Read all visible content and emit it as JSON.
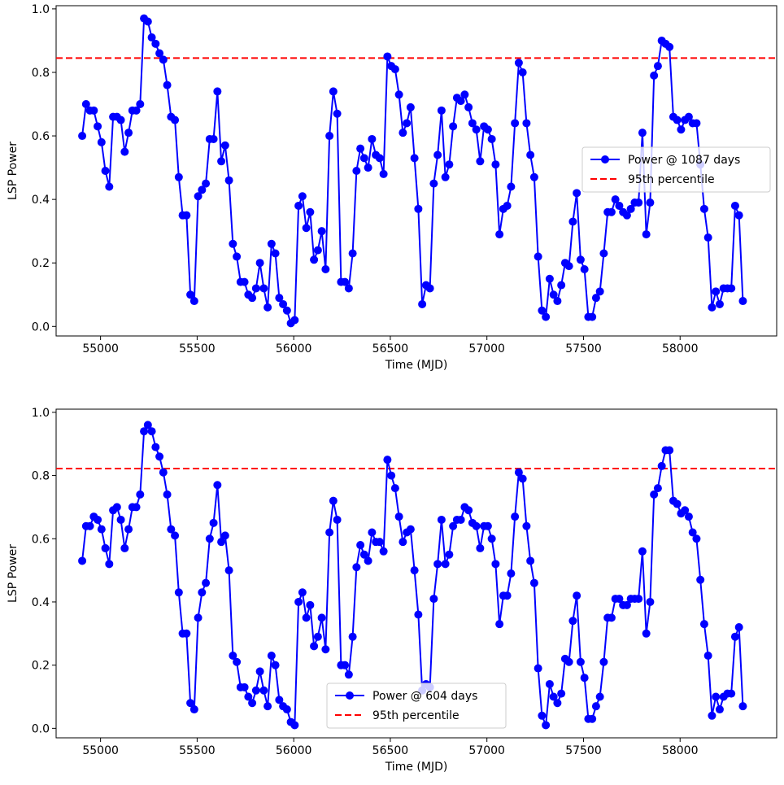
{
  "chart_data": [
    {
      "type": "line",
      "xlabel": "Time (MJD)",
      "ylabel": "LSP Power",
      "xlim": [
        54770,
        58500
      ],
      "ylim": [
        -0.03,
        1.01
      ],
      "xticks": [
        55000,
        55500,
        56000,
        56500,
        57000,
        57500,
        58000
      ],
      "yticks": [
        0.0,
        0.2,
        0.4,
        0.6,
        0.8,
        1.0
      ],
      "grid": false,
      "legend_position": "center-right",
      "threshold": {
        "name": "95th percentile",
        "value": 0.845,
        "color": "#ff0000",
        "style": "dashed"
      },
      "series": [
        {
          "name": "Power @ 1087 days",
          "color": "#0000ff",
          "x": [
            54905,
            54925,
            54945,
            54965,
            54985,
            55005,
            55025,
            55045,
            55065,
            55085,
            55105,
            55125,
            55145,
            55165,
            55185,
            55205,
            55225,
            55245,
            55265,
            55285,
            55305,
            55325,
            55345,
            55365,
            55385,
            55405,
            55425,
            55445,
            55465,
            55485,
            55505,
            55525,
            55545,
            55565,
            55585,
            55605,
            55625,
            55645,
            55665,
            55685,
            55705,
            55725,
            55745,
            55765,
            55785,
            55805,
            55825,
            55845,
            55865,
            55885,
            55905,
            55925,
            55945,
            55965,
            55985,
            56005,
            56025,
            56045,
            56065,
            56085,
            56105,
            56125,
            56145,
            56165,
            56185,
            56205,
            56225,
            56245,
            56265,
            56285,
            56305,
            56325,
            56345,
            56365,
            56385,
            56405,
            56425,
            56445,
            56465,
            56485,
            56505,
            56525,
            56545,
            56565,
            56585,
            56605,
            56625,
            56645,
            56665,
            56685,
            56705,
            56725,
            56745,
            56765,
            56785,
            56805,
            56825,
            56845,
            56865,
            56885,
            56905,
            56925,
            56945,
            56965,
            56985,
            57005,
            57025,
            57045,
            57065,
            57085,
            57105,
            57125,
            57145,
            57165,
            57185,
            57205,
            57225,
            57245,
            57265,
            57285,
            57305,
            57325,
            57345,
            57365,
            57385,
            57405,
            57425,
            57445,
            57465,
            57485,
            57505,
            57525,
            57545,
            57565,
            57585,
            57605,
            57625,
            57645,
            57665,
            57685,
            57705,
            57725,
            57745,
            57765,
            57785,
            57805,
            57825,
            57845,
            57865,
            57885,
            57905,
            57925,
            57945,
            57965,
            57985,
            58005,
            58025,
            58045,
            58065,
            58085,
            58105,
            58125,
            58145,
            58165,
            58185,
            58205,
            58225,
            58245,
            58265,
            58285,
            58305,
            58325
          ],
          "y": [
            0.6,
            0.7,
            0.68,
            0.68,
            0.63,
            0.58,
            0.49,
            0.44,
            0.66,
            0.66,
            0.65,
            0.55,
            0.61,
            0.68,
            0.68,
            0.7,
            0.97,
            0.96,
            0.91,
            0.89,
            0.86,
            0.84,
            0.76,
            0.66,
            0.65,
            0.47,
            0.35,
            0.35,
            0.1,
            0.08,
            0.41,
            0.43,
            0.45,
            0.59,
            0.59,
            0.74,
            0.52,
            0.57,
            0.46,
            0.26,
            0.22,
            0.14,
            0.14,
            0.1,
            0.09,
            0.12,
            0.2,
            0.12,
            0.06,
            0.26,
            0.23,
            0.09,
            0.07,
            0.05,
            0.01,
            0.02,
            0.38,
            0.41,
            0.31,
            0.36,
            0.21,
            0.24,
            0.3,
            0.18,
            0.6,
            0.74,
            0.67,
            0.14,
            0.14,
            0.12,
            0.23,
            0.49,
            0.56,
            0.53,
            0.5,
            0.59,
            0.54,
            0.53,
            0.48,
            0.85,
            0.82,
            0.81,
            0.73,
            0.61,
            0.64,
            0.69,
            0.53,
            0.37,
            0.07,
            0.13,
            0.12,
            0.45,
            0.54,
            0.68,
            0.47,
            0.51,
            0.63,
            0.72,
            0.71,
            0.73,
            0.69,
            0.64,
            0.62,
            0.52,
            0.63,
            0.62,
            0.59,
            0.51,
            0.29,
            0.37,
            0.38,
            0.44,
            0.64,
            0.83,
            0.8,
            0.64,
            0.54,
            0.47,
            0.22,
            0.05,
            0.03,
            0.15,
            0.1,
            0.08,
            0.13,
            0.2,
            0.19,
            0.33,
            0.42,
            0.21,
            0.18,
            0.03,
            0.03,
            0.09,
            0.11,
            0.23,
            0.36,
            0.36,
            0.4,
            0.38,
            0.36,
            0.35,
            0.37,
            0.39,
            0.39,
            0.61,
            0.29,
            0.39,
            0.79,
            0.82,
            0.9,
            0.89,
            0.88,
            0.66,
            0.65,
            0.62,
            0.65,
            0.66,
            0.64,
            0.64,
            0.51,
            0.37,
            0.28,
            0.06,
            0.11,
            0.07,
            0.12,
            0.12,
            0.12,
            0.38,
            0.35,
            0.08
          ]
        }
      ]
    },
    {
      "type": "line",
      "xlabel": "Time (MJD)",
      "ylabel": "LSP Power",
      "xlim": [
        54770,
        58500
      ],
      "ylim": [
        -0.03,
        1.01
      ],
      "xticks": [
        55000,
        55500,
        56000,
        56500,
        57000,
        57500,
        58000
      ],
      "yticks": [
        0.0,
        0.2,
        0.4,
        0.6,
        0.8,
        1.0
      ],
      "grid": false,
      "legend_position": "bottom-center",
      "threshold": {
        "name": "95th percentile",
        "value": 0.822,
        "color": "#ff0000",
        "style": "dashed"
      },
      "series": [
        {
          "name": "Power @ 604 days",
          "color": "#0000ff",
          "x": [
            54905,
            54925,
            54945,
            54965,
            54985,
            55005,
            55025,
            55045,
            55065,
            55085,
            55105,
            55125,
            55145,
            55165,
            55185,
            55205,
            55225,
            55245,
            55265,
            55285,
            55305,
            55325,
            55345,
            55365,
            55385,
            55405,
            55425,
            55445,
            55465,
            55485,
            55505,
            55525,
            55545,
            55565,
            55585,
            55605,
            55625,
            55645,
            55665,
            55685,
            55705,
            55725,
            55745,
            55765,
            55785,
            55805,
            55825,
            55845,
            55865,
            55885,
            55905,
            55925,
            55945,
            55965,
            55985,
            56005,
            56025,
            56045,
            56065,
            56085,
            56105,
            56125,
            56145,
            56165,
            56185,
            56205,
            56225,
            56245,
            56265,
            56285,
            56305,
            56325,
            56345,
            56365,
            56385,
            56405,
            56425,
            56445,
            56465,
            56485,
            56505,
            56525,
            56545,
            56565,
            56585,
            56605,
            56625,
            56645,
            56665,
            56685,
            56705,
            56725,
            56745,
            56765,
            56785,
            56805,
            56825,
            56845,
            56865,
            56885,
            56905,
            56925,
            56945,
            56965,
            56985,
            57005,
            57025,
            57045,
            57065,
            57085,
            57105,
            57125,
            57145,
            57165,
            57185,
            57205,
            57225,
            57245,
            57265,
            57285,
            57305,
            57325,
            57345,
            57365,
            57385,
            57405,
            57425,
            57445,
            57465,
            57485,
            57505,
            57525,
            57545,
            57565,
            57585,
            57605,
            57625,
            57645,
            57665,
            57685,
            57705,
            57725,
            57745,
            57765,
            57785,
            57805,
            57825,
            57845,
            57865,
            57885,
            57905,
            57925,
            57945,
            57965,
            57985,
            58005,
            58025,
            58045,
            58065,
            58085,
            58105,
            58125,
            58145,
            58165,
            58185,
            58205,
            58225,
            58245,
            58265,
            58285,
            58305,
            58325
          ],
          "y": [
            0.53,
            0.64,
            0.64,
            0.67,
            0.66,
            0.63,
            0.57,
            0.52,
            0.69,
            0.7,
            0.66,
            0.57,
            0.63,
            0.7,
            0.7,
            0.74,
            0.94,
            0.96,
            0.94,
            0.89,
            0.86,
            0.81,
            0.74,
            0.63,
            0.61,
            0.43,
            0.3,
            0.3,
            0.08,
            0.06,
            0.35,
            0.43,
            0.46,
            0.6,
            0.65,
            0.77,
            0.59,
            0.61,
            0.5,
            0.23,
            0.21,
            0.13,
            0.13,
            0.1,
            0.08,
            0.12,
            0.18,
            0.12,
            0.07,
            0.23,
            0.2,
            0.09,
            0.07,
            0.06,
            0.02,
            0.01,
            0.4,
            0.43,
            0.35,
            0.39,
            0.26,
            0.29,
            0.35,
            0.25,
            0.62,
            0.72,
            0.66,
            0.2,
            0.2,
            0.17,
            0.29,
            0.51,
            0.58,
            0.55,
            0.53,
            0.62,
            0.59,
            0.59,
            0.56,
            0.85,
            0.8,
            0.76,
            0.67,
            0.59,
            0.62,
            0.63,
            0.5,
            0.36,
            0.12,
            0.14,
            0.13,
            0.41,
            0.52,
            0.66,
            0.52,
            0.55,
            0.64,
            0.66,
            0.66,
            0.7,
            0.69,
            0.65,
            0.64,
            0.57,
            0.64,
            0.64,
            0.6,
            0.52,
            0.33,
            0.42,
            0.42,
            0.49,
            0.67,
            0.81,
            0.79,
            0.64,
            0.53,
            0.46,
            0.19,
            0.04,
            0.01,
            0.14,
            0.1,
            0.08,
            0.11,
            0.22,
            0.21,
            0.34,
            0.42,
            0.21,
            0.16,
            0.03,
            0.03,
            0.07,
            0.1,
            0.21,
            0.35,
            0.35,
            0.41,
            0.41,
            0.39,
            0.39,
            0.41,
            0.41,
            0.41,
            0.56,
            0.3,
            0.4,
            0.74,
            0.76,
            0.83,
            0.88,
            0.88,
            0.72,
            0.71,
            0.68,
            0.69,
            0.67,
            0.62,
            0.6,
            0.47,
            0.33,
            0.23,
            0.04,
            0.1,
            0.06,
            0.1,
            0.11,
            0.11,
            0.29,
            0.32,
            0.07
          ]
        }
      ]
    }
  ]
}
